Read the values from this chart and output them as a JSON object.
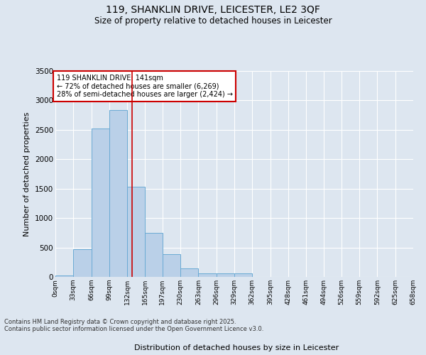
{
  "title_line1": "119, SHANKLIN DRIVE, LEICESTER, LE2 3QF",
  "title_line2": "Size of property relative to detached houses in Leicester",
  "xlabel": "Distribution of detached houses by size in Leicester",
  "ylabel": "Number of detached properties",
  "footer_line1": "Contains HM Land Registry data © Crown copyright and database right 2025.",
  "footer_line2": "Contains public sector information licensed under the Open Government Licence v3.0.",
  "annotation_line1": "119 SHANKLIN DRIVE: 141sqm",
  "annotation_line2": "← 72% of detached houses are smaller (6,269)",
  "annotation_line3": "28% of semi-detached houses are larger (2,424) →",
  "bin_edges": [
    0,
    33,
    66,
    99,
    132,
    165,
    197,
    230,
    263,
    296,
    329,
    362,
    395,
    428,
    461,
    494,
    526,
    559,
    592,
    625,
    658
  ],
  "bar_heights": [
    20,
    470,
    2520,
    2840,
    1530,
    750,
    390,
    140,
    65,
    55,
    55,
    0,
    0,
    0,
    0,
    0,
    0,
    0,
    0,
    0
  ],
  "bar_color": "#bad0e8",
  "bar_edge_color": "#6aaad4",
  "property_line_x": 141,
  "property_line_color": "#cc0000",
  "ylim": [
    0,
    3500
  ],
  "yticks": [
    0,
    500,
    1000,
    1500,
    2000,
    2500,
    3000,
    3500
  ],
  "background_color": "#dde6f0",
  "grid_color": "#ffffff",
  "annotation_box_color": "#ffffff",
  "annotation_box_edge": "#cc0000"
}
